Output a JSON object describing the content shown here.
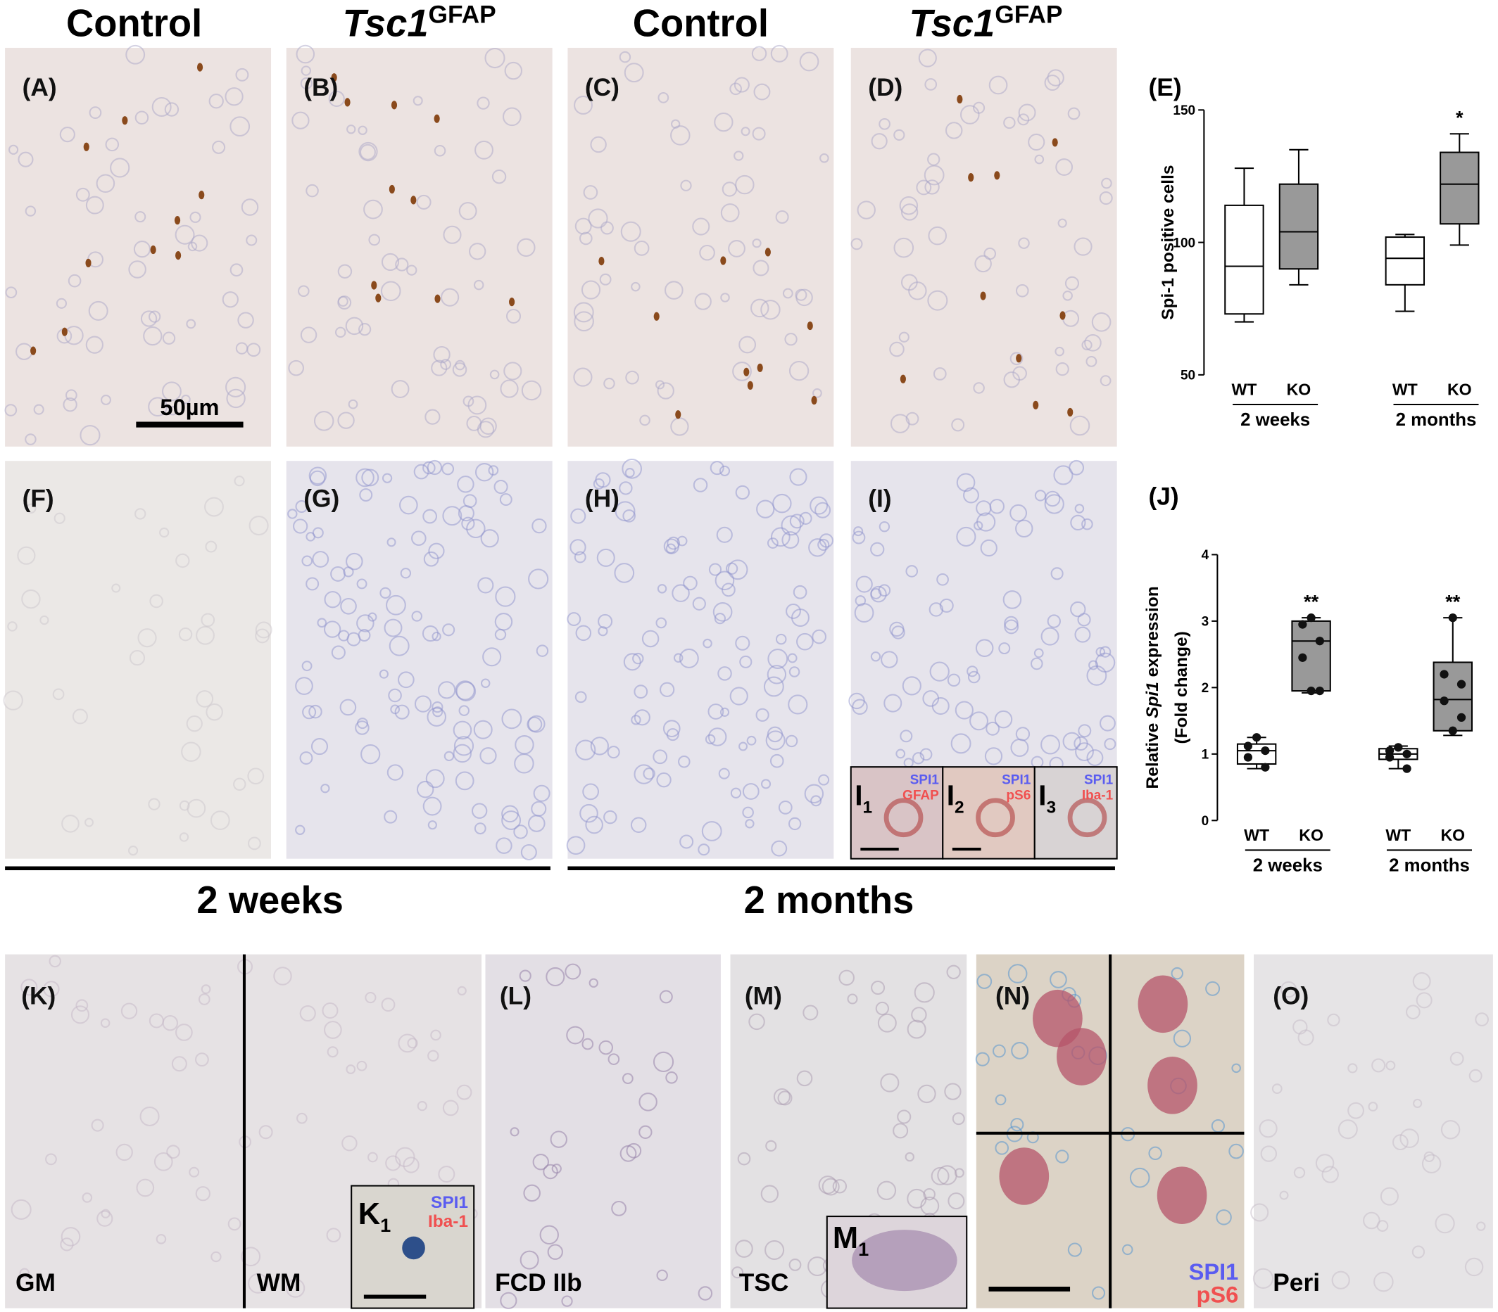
{
  "headers": [
    "Control",
    {
      "main": "Tsc1",
      "sup": "GFAP"
    },
    "Control",
    {
      "main": "Tsc1",
      "sup": "GFAP"
    }
  ],
  "panel_labels": [
    "(A)",
    "(B)",
    "(C)",
    "(D)",
    "(F)",
    "(G)",
    "(H)",
    "(I)",
    "(K)",
    "(L)",
    "(M)",
    "(N)",
    "(O)"
  ],
  "scale_bar": "50µm",
  "age_labels": [
    "2 weeks",
    "2 months"
  ],
  "insets_I": [
    {
      "label": "I",
      "sub": "1",
      "markers": [
        "SPI1",
        "GFAP"
      ]
    },
    {
      "label": "I",
      "sub": "2",
      "markers": [
        "SPI1",
        "pS6"
      ]
    },
    {
      "label": "I",
      "sub": "3",
      "markers": [
        "SPI1",
        "Iba-1"
      ]
    }
  ],
  "K": {
    "regions": [
      "GM",
      "WM"
    ],
    "inset": {
      "label": "K",
      "sub": "1",
      "markers": [
        "SPI1",
        "Iba-1"
      ]
    }
  },
  "L_region": "FCD IIb",
  "M": {
    "region": "TSC",
    "inset": {
      "label": "M",
      "sub": "1"
    }
  },
  "N_markers": [
    "SPI1",
    "pS6"
  ],
  "O_region": "Peri",
  "chart_data": [
    {
      "type": "box",
      "label": "(E)",
      "ylabel": "Spi-1 positive cells",
      "categories": [
        "WT",
        "KO",
        "WT",
        "KO"
      ],
      "groups": [
        "2 weeks",
        "2 months"
      ],
      "ylim": [
        50,
        150
      ],
      "yticks": [
        50,
        100,
        150
      ],
      "box_colors": [
        "#ffffff",
        "#999999",
        "#ffffff",
        "#999999"
      ],
      "boxes": [
        {
          "min": 70,
          "q1": 73,
          "median": 91,
          "q3": 114,
          "max": 128
        },
        {
          "min": 84,
          "q1": 90,
          "median": 104,
          "q3": 122,
          "max": 135
        },
        {
          "min": 74,
          "q1": 84,
          "median": 94,
          "q3": 102,
          "max": 103
        },
        {
          "min": 99,
          "q1": 107,
          "median": 122,
          "q3": 134,
          "max": 141
        }
      ],
      "annotations": [
        {
          "index": 3,
          "text": "*"
        }
      ]
    },
    {
      "type": "box",
      "label": "(J)",
      "ylabel_parts": [
        "Relative ",
        "Spi1",
        " expression"
      ],
      "ylabel2": "(Fold change)",
      "categories": [
        "WT",
        "KO",
        "WT",
        "KO"
      ],
      "groups": [
        "2 weeks",
        "2 months"
      ],
      "ylim": [
        0,
        4
      ],
      "yticks": [
        0,
        1,
        2,
        3,
        4
      ],
      "box_colors": [
        "#ffffff",
        "#999999",
        "#ffffff",
        "#999999"
      ],
      "boxes": [
        {
          "min": 0.78,
          "q1": 0.85,
          "median": 1.05,
          "q3": 1.15,
          "max": 1.25,
          "points": [
            1.25,
            1.12,
            1.05,
            0.95,
            0.8
          ]
        },
        {
          "min": 1.92,
          "q1": 1.95,
          "median": 2.7,
          "q3": 3.0,
          "max": 3.05,
          "points": [
            3.05,
            2.95,
            2.7,
            2.45,
            1.95,
            1.95
          ]
        },
        {
          "min": 0.78,
          "q1": 0.92,
          "median": 1.0,
          "q3": 1.08,
          "max": 1.12,
          "points": [
            1.1,
            1.05,
            1.0,
            0.95,
            0.78
          ]
        },
        {
          "min": 1.28,
          "q1": 1.35,
          "median": 1.82,
          "q3": 2.38,
          "max": 3.05,
          "points": [
            3.05,
            2.2,
            2.05,
            1.8,
            1.55,
            1.35
          ]
        }
      ],
      "annotations": [
        {
          "index": 1,
          "text": "**"
        },
        {
          "index": 3,
          "text": "**"
        }
      ]
    }
  ]
}
